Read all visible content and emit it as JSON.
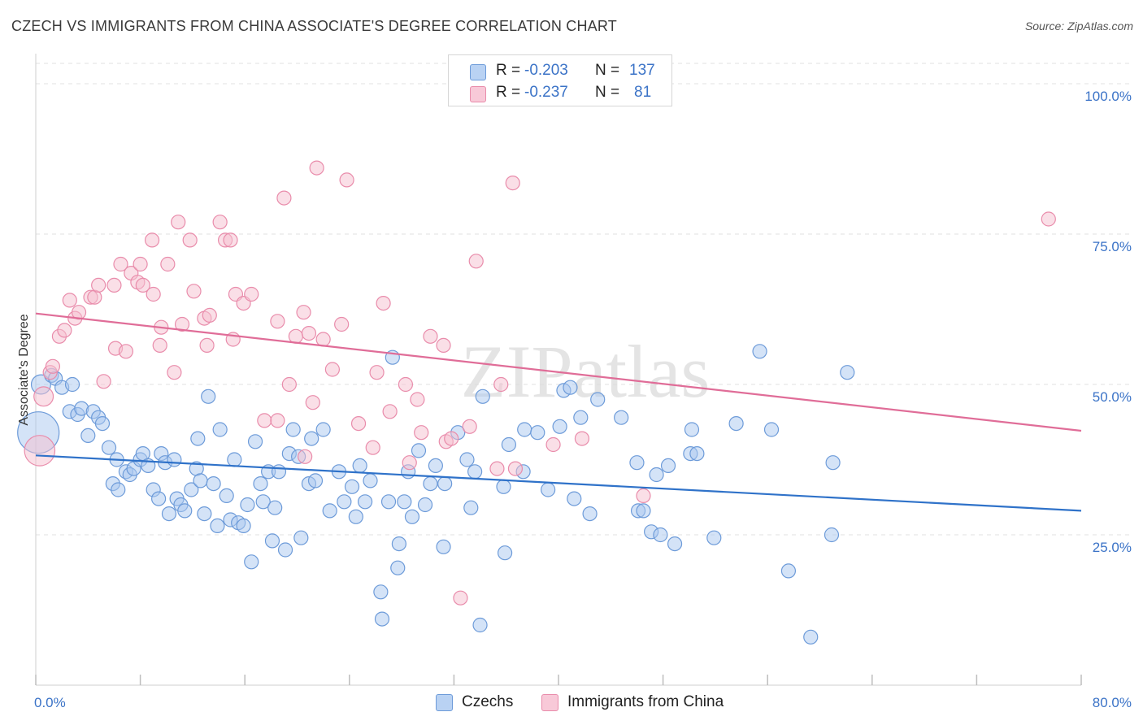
{
  "title": "CZECH VS IMMIGRANTS FROM CHINA ASSOCIATE'S DEGREE CORRELATION CHART",
  "source": "Source: ZipAtlas.com",
  "watermark": "ZIPatlas",
  "legend": {
    "rows": [
      {
        "r_label": "R =",
        "r_value": "-0.203",
        "n_label": "N =",
        "n_value": "137"
      },
      {
        "r_label": "R =",
        "r_value": "-0.237",
        "n_label": "N =",
        "n_value": "81"
      }
    ]
  },
  "bottom_legend": {
    "czechs": "Czechs",
    "china": "Immigrants from China"
  },
  "colors": {
    "czech_fill": "#a9c8f0",
    "czech_stroke": "#6d9bd9",
    "czech_line": "#2f72c9",
    "china_fill": "#f6bfd0",
    "china_stroke": "#e98cab",
    "china_line": "#e06d98",
    "tick": "#3b73c7"
  },
  "chart_data": {
    "type": "scatter",
    "title": "CZECH VS IMMIGRANTS FROM CHINA ASSOCIATE'S DEGREE CORRELATION CHART",
    "xlabel": "",
    "ylabel": "Associate's Degree",
    "xlim": [
      0,
      80
    ],
    "ylim": [
      0,
      105
    ],
    "x_tick_labels": [
      "0.0%",
      "80.0%"
    ],
    "y_ticks": [
      25,
      50,
      75,
      100
    ],
    "y_tick_labels": [
      "25.0%",
      "50.0%",
      "75.0%",
      "100.0%"
    ],
    "grid": true,
    "legend_position": "top-center",
    "series": [
      {
        "name": "Czechs",
        "trend": {
          "x": [
            0,
            80
          ],
          "y": [
            38.2,
            29.0
          ]
        },
        "points": [
          [
            0.2,
            42,
            3
          ],
          [
            0.4,
            50,
            1.4
          ],
          [
            1.2,
            51.5,
            1
          ],
          [
            1.5,
            51,
            1
          ],
          [
            2,
            49.5,
            1
          ],
          [
            2.8,
            50,
            1
          ],
          [
            2.6,
            45.5,
            1
          ],
          [
            3.2,
            45,
            1
          ],
          [
            3.5,
            46,
            1
          ],
          [
            4.4,
            45.5,
            1
          ],
          [
            4.8,
            44.5,
            1
          ],
          [
            5.1,
            43.5,
            1
          ],
          [
            4,
            41.5,
            1
          ],
          [
            5.6,
            39.5,
            1
          ],
          [
            6.2,
            37.5,
            1
          ],
          [
            5.9,
            33.5,
            1
          ],
          [
            6.3,
            32.5,
            1
          ],
          [
            6.9,
            35.5,
            1
          ],
          [
            7.2,
            35,
            1
          ],
          [
            7.5,
            36,
            1
          ],
          [
            8,
            37.5,
            1
          ],
          [
            8.2,
            38.5,
            1
          ],
          [
            8.6,
            36.5,
            1
          ],
          [
            9,
            32.5,
            1
          ],
          [
            9.4,
            31,
            1
          ],
          [
            9.6,
            38.5,
            1
          ],
          [
            9.9,
            37,
            1
          ],
          [
            10.2,
            28.5,
            1
          ],
          [
            10.6,
            37.5,
            1
          ],
          [
            10.8,
            31,
            1
          ],
          [
            11.1,
            30,
            1
          ],
          [
            11.4,
            29,
            1
          ],
          [
            11.9,
            32.5,
            1
          ],
          [
            12.3,
            36,
            1
          ],
          [
            12.4,
            41,
            1
          ],
          [
            12.6,
            34,
            1
          ],
          [
            12.9,
            28.5,
            1
          ],
          [
            13.2,
            48,
            1
          ],
          [
            13.6,
            33.5,
            1
          ],
          [
            13.9,
            26.5,
            1
          ],
          [
            14.1,
            42.5,
            1
          ],
          [
            14.6,
            31.5,
            1
          ],
          [
            14.9,
            27.5,
            1
          ],
          [
            15.2,
            37.5,
            1
          ],
          [
            15.5,
            27,
            1
          ],
          [
            15.9,
            26.5,
            1
          ],
          [
            16.2,
            30,
            1
          ],
          [
            16.5,
            20.5,
            1
          ],
          [
            16.8,
            40.5,
            1
          ],
          [
            17.2,
            33.5,
            1
          ],
          [
            17.4,
            30.5,
            1
          ],
          [
            17.8,
            35.5,
            1
          ],
          [
            18.1,
            24,
            1
          ],
          [
            18.3,
            29.5,
            1
          ],
          [
            18.6,
            35.5,
            1
          ],
          [
            19.1,
            22.5,
            1
          ],
          [
            19.4,
            38.5,
            1
          ],
          [
            19.7,
            42.5,
            1
          ],
          [
            20.1,
            38,
            1
          ],
          [
            20.3,
            24.5,
            1
          ],
          [
            20.9,
            33.5,
            1
          ],
          [
            21.1,
            41,
            1
          ],
          [
            21.4,
            34,
            1
          ],
          [
            22,
            42.5,
            1
          ],
          [
            22.5,
            29,
            1
          ],
          [
            23.2,
            35.5,
            1
          ],
          [
            23.6,
            30.5,
            1
          ],
          [
            24.2,
            33,
            1
          ],
          [
            24.5,
            28,
            1
          ],
          [
            24.8,
            36.5,
            1
          ],
          [
            25.2,
            30.5,
            1
          ],
          [
            25.6,
            34,
            1
          ],
          [
            26.4,
            15.5,
            1
          ],
          [
            26.5,
            11,
            1
          ],
          [
            27,
            30.5,
            1
          ],
          [
            27.3,
            54.5,
            1
          ],
          [
            27.8,
            23.5,
            1
          ],
          [
            27.7,
            19.5,
            1
          ],
          [
            28.2,
            30.5,
            1
          ],
          [
            28.5,
            35.5,
            1
          ],
          [
            28.8,
            28,
            1
          ],
          [
            29.3,
            39,
            1
          ],
          [
            29.8,
            30,
            1
          ],
          [
            30.2,
            33.5,
            1
          ],
          [
            30.6,
            36.5,
            1
          ],
          [
            31.2,
            23,
            1
          ],
          [
            31.3,
            33.5,
            1
          ],
          [
            32.3,
            42,
            1
          ],
          [
            33,
            37.5,
            1
          ],
          [
            33.3,
            29.5,
            1
          ],
          [
            33.6,
            35.5,
            1
          ],
          [
            34,
            10,
            1
          ],
          [
            34.2,
            48,
            1
          ],
          [
            35.8,
            33,
            1
          ],
          [
            35.9,
            22,
            1
          ],
          [
            36.2,
            40,
            1
          ],
          [
            37.3,
            35.5,
            1
          ],
          [
            37.4,
            42.5,
            1
          ],
          [
            38.4,
            42,
            1
          ],
          [
            39.2,
            32.5,
            1
          ],
          [
            40.1,
            43,
            1
          ],
          [
            40.4,
            49,
            1
          ],
          [
            40.9,
            49.5,
            1
          ],
          [
            41.2,
            31,
            1
          ],
          [
            41.7,
            44.5,
            1
          ],
          [
            42.4,
            28.5,
            1
          ],
          [
            43,
            47.5,
            1
          ],
          [
            44.8,
            44.5,
            1
          ],
          [
            46,
            37,
            1
          ],
          [
            46.1,
            29,
            1
          ],
          [
            46.5,
            29,
            1
          ],
          [
            47.1,
            25.5,
            1
          ],
          [
            47.5,
            35,
            1
          ],
          [
            47.8,
            25,
            1
          ],
          [
            48.4,
            36.5,
            1
          ],
          [
            48.9,
            23.5,
            1
          ],
          [
            50.1,
            38.5,
            1
          ],
          [
            50.2,
            42.5,
            1
          ],
          [
            50.6,
            38.5,
            1
          ],
          [
            51.9,
            24.5,
            1
          ],
          [
            53.6,
            43.5,
            1
          ],
          [
            55.4,
            55.5,
            1
          ],
          [
            56.3,
            42.5,
            1
          ],
          [
            57.6,
            19,
            1
          ],
          [
            59.3,
            8,
            1
          ],
          [
            60.9,
            25,
            1
          ],
          [
            61,
            37,
            1
          ],
          [
            62.1,
            52,
            1
          ]
        ]
      },
      {
        "name": "Immigrants from China",
        "trend": {
          "x": [
            0,
            80
          ],
          "y": [
            61.8,
            42.3
          ]
        },
        "points": [
          [
            0.3,
            39,
            2.2
          ],
          [
            0.6,
            48,
            1.4
          ],
          [
            1.1,
            52,
            1
          ],
          [
            1.3,
            53,
            1
          ],
          [
            1.8,
            58,
            1
          ],
          [
            2.2,
            59,
            1
          ],
          [
            2.6,
            64,
            1
          ],
          [
            3,
            61,
            1
          ],
          [
            3.3,
            62,
            1
          ],
          [
            4.2,
            64.5,
            1
          ],
          [
            4.5,
            64.5,
            1
          ],
          [
            4.8,
            66.5,
            1
          ],
          [
            5.2,
            50.5,
            1
          ],
          [
            6,
            66.5,
            1
          ],
          [
            6.1,
            56,
            1
          ],
          [
            6.5,
            70,
            1
          ],
          [
            6.9,
            55.5,
            1
          ],
          [
            7.3,
            68.5,
            1
          ],
          [
            7.8,
            67,
            1
          ],
          [
            8,
            70,
            1
          ],
          [
            8.2,
            66.5,
            1
          ],
          [
            8.9,
            74,
            1
          ],
          [
            9,
            65,
            1
          ],
          [
            9.5,
            56.5,
            1
          ],
          [
            9.6,
            59.5,
            1
          ],
          [
            10.1,
            70,
            1
          ],
          [
            10.6,
            52,
            1
          ],
          [
            10.9,
            77,
            1
          ],
          [
            11.2,
            60,
            1
          ],
          [
            11.8,
            74,
            1
          ],
          [
            12.1,
            65.5,
            1
          ],
          [
            12.9,
            61,
            1
          ],
          [
            13.1,
            56.5,
            1
          ],
          [
            13.3,
            61.5,
            1
          ],
          [
            14.1,
            77,
            1
          ],
          [
            14.5,
            74,
            1
          ],
          [
            14.9,
            74,
            1
          ],
          [
            15.1,
            57.5,
            1
          ],
          [
            15.3,
            65,
            1
          ],
          [
            15.9,
            63.5,
            1
          ],
          [
            16.5,
            65,
            1
          ],
          [
            17.5,
            44,
            1
          ],
          [
            18.5,
            44,
            1
          ],
          [
            18.5,
            60.5,
            1
          ],
          [
            19,
            81,
            1
          ],
          [
            19.4,
            50,
            1
          ],
          [
            19.9,
            58,
            1
          ],
          [
            20.5,
            62,
            1
          ],
          [
            20.6,
            38,
            1
          ],
          [
            20.9,
            58.5,
            1
          ],
          [
            21.2,
            47,
            1
          ],
          [
            21.5,
            86,
            1
          ],
          [
            22,
            57.5,
            1
          ],
          [
            22.7,
            52.5,
            1
          ],
          [
            23.4,
            60,
            1
          ],
          [
            23.8,
            84,
            1
          ],
          [
            24.7,
            43.5,
            1
          ],
          [
            25.8,
            39.5,
            1
          ],
          [
            26.1,
            52,
            1
          ],
          [
            26.6,
            63.5,
            1
          ],
          [
            27.1,
            45.5,
            1
          ],
          [
            28.3,
            50,
            1
          ],
          [
            28.6,
            37,
            1
          ],
          [
            29.2,
            47.5,
            1
          ],
          [
            29.5,
            42,
            1
          ],
          [
            30.2,
            58,
            1
          ],
          [
            31.2,
            56.5,
            1
          ],
          [
            31.4,
            40.5,
            1
          ],
          [
            31.8,
            41,
            1
          ],
          [
            32.5,
            14.5,
            1
          ],
          [
            33.2,
            43,
            1
          ],
          [
            33.7,
            70.5,
            1
          ],
          [
            35.3,
            36,
            1
          ],
          [
            35.6,
            50,
            1
          ],
          [
            36.5,
            83.5,
            1
          ],
          [
            36.7,
            36,
            1
          ],
          [
            39.6,
            40,
            1
          ],
          [
            41.8,
            41,
            1
          ],
          [
            46.5,
            31.5,
            1
          ],
          [
            77.5,
            77.5,
            1
          ]
        ]
      }
    ]
  }
}
